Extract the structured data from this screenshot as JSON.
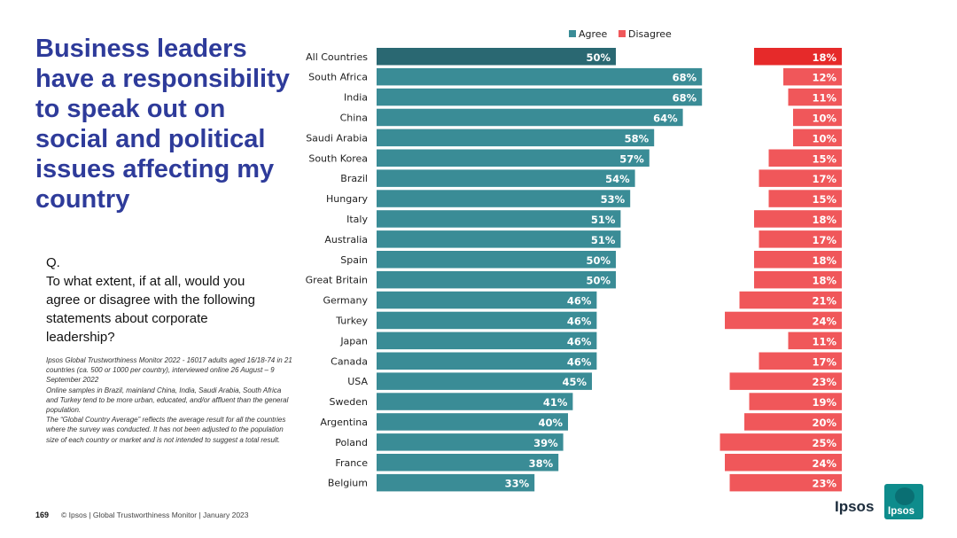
{
  "title": "Business leaders have a responsibility to speak out on social and political issues affecting my country",
  "question": {
    "prefix": "Q.",
    "text": "To what extent, if at all, would you agree or disagree with the following statements about corporate leadership?"
  },
  "notes": [
    "Ipsos Global Trustworthiness Monitor 2022 - 16017 adults aged 16/18-74 in 21 countries (ca. 500 or 1000 per country), interviewed online 26 August – 9 September 2022",
    "Online samples in Brazil, mainland China, India, Saudi Arabia, South Africa and Turkey tend to be more urban, educated, and/or affluent than the general population.",
    "The “Global Country Average” reflects the average result for all the countries where the survey was conducted. It has not been adjusted to the population size of each country or market and is not intended to suggest a total result."
  ],
  "footer": {
    "page_number": "169",
    "text": "© Ipsos | Global Trustworthiness Monitor | January 2023"
  },
  "logo": {
    "wordmark": "Ipsos",
    "badge_text": "Ipsos"
  },
  "colors": {
    "agree": "#3a8c96",
    "agree_highlight": "#2a6872",
    "disagree": "#f0575a",
    "disagree_highlight": "#e62a2a",
    "title": "#2e3b9a"
  },
  "chart_data": {
    "type": "bar",
    "orientation": "horizontal",
    "legend_position": "top",
    "categories": [
      "All Countries",
      "South Africa",
      "India",
      "China",
      "Saudi Arabia",
      "South Korea",
      "Brazil",
      "Hungary",
      "Italy",
      "Australia",
      "Spain",
      "Great Britain",
      "Germany",
      "Turkey",
      "Japan",
      "Canada",
      "USA",
      "Sweden",
      "Argentina",
      "Poland",
      "France",
      "Belgium"
    ],
    "series": [
      {
        "name": "Agree",
        "values": [
          50,
          68,
          68,
          64,
          58,
          57,
          54,
          53,
          51,
          51,
          50,
          50,
          46,
          46,
          46,
          46,
          45,
          41,
          40,
          39,
          38,
          33
        ]
      },
      {
        "name": "Disagree",
        "values": [
          18,
          12,
          11,
          10,
          10,
          15,
          17,
          15,
          18,
          17,
          18,
          18,
          21,
          24,
          11,
          17,
          23,
          19,
          20,
          25,
          24,
          23
        ]
      }
    ],
    "value_suffix": "%",
    "highlight_category": "All Countries"
  }
}
